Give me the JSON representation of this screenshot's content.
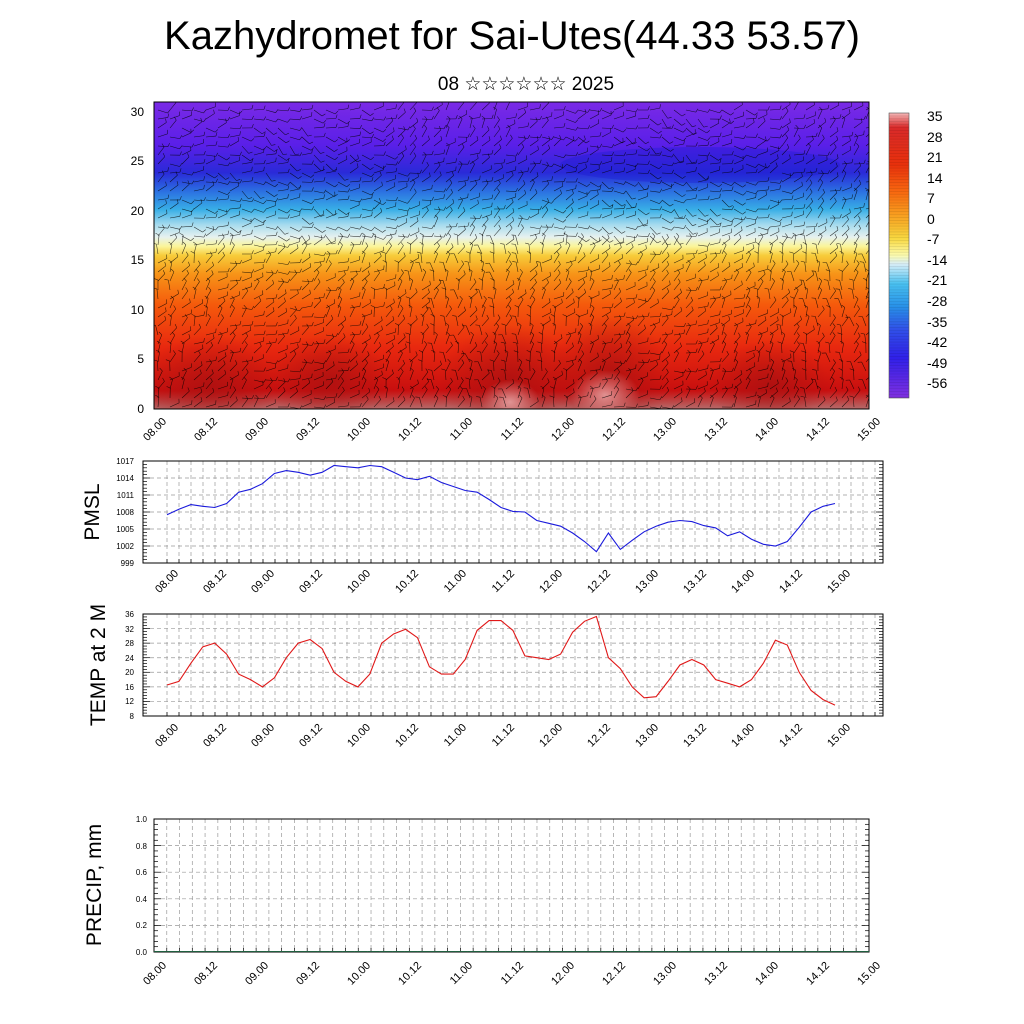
{
  "title": "Kazhydromet for Sai-Utes(44.33 53.57)",
  "subtitle": "08 ☆☆☆☆☆☆ 2025",
  "colors": {
    "pmsl_line": "#1a1adc",
    "temp_line": "#e01818",
    "grid": "#999999"
  },
  "chart_data": [
    {
      "type": "heatmap",
      "title": "",
      "xlabel": "",
      "ylabel": "",
      "ylim": [
        0,
        31
      ],
      "y_ticks": [
        "0",
        "5",
        "10",
        "15",
        "20",
        "25",
        "30"
      ],
      "x_ticks": [
        "08.00",
        "08.12",
        "09.00",
        "09.12",
        "10.00",
        "10.12",
        "11.00",
        "11.12",
        "12.00",
        "12.12",
        "13.00",
        "13.12",
        "14.00",
        "14.12",
        "15.00"
      ],
      "colorbar": {
        "labels": [
          "35",
          "28",
          "21",
          "14",
          "7",
          "0",
          "-7",
          "-14",
          "-21",
          "-28",
          "-35",
          "-42",
          "-49",
          "-56"
        ],
        "range": [
          -63,
          39
        ]
      },
      "overlay": "wind barbs",
      "legend_position": "right"
    },
    {
      "type": "line",
      "ylabel": "PMSL",
      "ylim": [
        999,
        1017
      ],
      "y_ticks": [
        "999",
        "1002",
        "1005",
        "1008",
        "1011",
        "1014",
        "1017"
      ],
      "x_ticks": [
        "08.00",
        "08.12",
        "09.00",
        "09.12",
        "10.00",
        "10.12",
        "11.00",
        "11.12",
        "12.00",
        "12.12",
        "13.00",
        "13.12",
        "14.00",
        "14.12",
        "15.00"
      ],
      "grid": true,
      "series": [
        {
          "values": [
            1007.5,
            1008.5,
            1009.3,
            1009.0,
            1008.8,
            1009.5,
            1011.5,
            1012.0,
            1013.0,
            1014.8,
            1015.3,
            1015.0,
            1014.5,
            1015.0,
            1016.2,
            1016.0,
            1015.8,
            1016.2,
            1016.0,
            1015.0,
            1014.0,
            1013.7,
            1014.3,
            1013.2,
            1012.5,
            1011.8,
            1011.5,
            1010.2,
            1008.8,
            1008.1,
            1008.0,
            1006.5,
            1006.0,
            1005.5,
            1004.3,
            1002.8,
            1001.0,
            1004.3,
            1001.4,
            1003.0,
            1004.5,
            1005.5,
            1006.2,
            1006.5,
            1006.3,
            1005.6,
            1005.2,
            1003.8,
            1004.5,
            1003.2,
            1002.3,
            1002.0,
            1002.8,
            1005.3,
            1008.0,
            1009.0,
            1009.5
          ]
        }
      ]
    },
    {
      "type": "line",
      "ylabel": "TEMP at 2 M",
      "ylim": [
        8,
        36
      ],
      "y_ticks": [
        "8",
        "12",
        "16",
        "20",
        "24",
        "28",
        "32",
        "36"
      ],
      "x_ticks": [
        "08.00",
        "08.12",
        "09.00",
        "09.12",
        "10.00",
        "10.12",
        "11.00",
        "11.12",
        "12.00",
        "12.12",
        "13.00",
        "13.12",
        "14.00",
        "14.12",
        "15.00"
      ],
      "grid": true,
      "series": [
        {
          "values": [
            16.5,
            17.5,
            22.5,
            27.0,
            28.0,
            25.0,
            19.5,
            18.0,
            16.0,
            18.5,
            24.0,
            28.0,
            29.0,
            26.5,
            20.0,
            17.5,
            16.0,
            19.5,
            28.0,
            30.5,
            31.8,
            29.5,
            21.5,
            19.5,
            19.5,
            23.5,
            31.5,
            34.2,
            34.2,
            31.5,
            24.5,
            24.0,
            23.5,
            25.0,
            31.0,
            34.0,
            35.3,
            24.0,
            21.0,
            16.0,
            13.0,
            13.3,
            17.5,
            22.0,
            23.5,
            22.0,
            18.0,
            17.0,
            16.0,
            18.0,
            22.5,
            28.8,
            27.5,
            20.0,
            15.0,
            12.5,
            11.0
          ]
        }
      ]
    },
    {
      "type": "bar",
      "ylabel": "PRECIP, mm",
      "ylim": [
        0,
        1
      ],
      "y_ticks": [
        "0.0",
        "0.2",
        "0.4",
        "0.6",
        "0.8",
        "1.0"
      ],
      "x_ticks": [
        "08.00",
        "08.12",
        "09.00",
        "09.12",
        "10.00",
        "10.12",
        "11.00",
        "11.12",
        "12.00",
        "12.12",
        "13.00",
        "13.12",
        "14.00",
        "14.12",
        "15.00"
      ],
      "grid": true,
      "series": [
        {
          "values": [
            0,
            0,
            0,
            0,
            0,
            0,
            0,
            0,
            0,
            0,
            0,
            0,
            0,
            0,
            0,
            0,
            0,
            0,
            0,
            0,
            0,
            0,
            0,
            0,
            0,
            0,
            0,
            0,
            0,
            0,
            0,
            0,
            0,
            0,
            0,
            0,
            0,
            0,
            0,
            0,
            0,
            0,
            0,
            0,
            0,
            0,
            0,
            0,
            0,
            0,
            0,
            0,
            0,
            0,
            0,
            0,
            0
          ]
        }
      ]
    }
  ]
}
